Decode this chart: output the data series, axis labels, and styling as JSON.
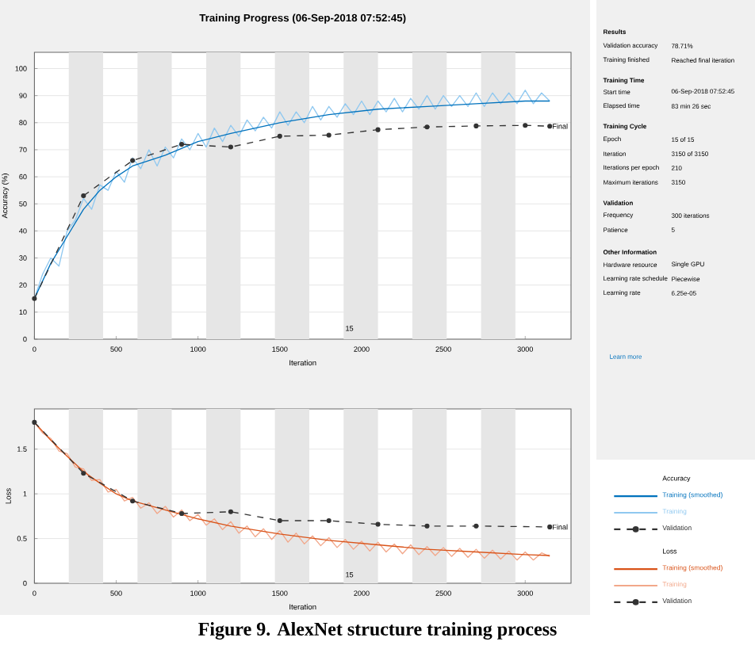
{
  "chart_data": [
    {
      "type": "line",
      "title": "Training Progress (06-Sep-2018 07:52:45)",
      "xlabel": "Iteration",
      "ylabel": "Accuracy (%)",
      "legend_title": "Accuracy",
      "legend": "right",
      "grid": "y",
      "xlim": [
        0,
        3280
      ],
      "xticks": [
        0,
        500,
        1000,
        1500,
        2000,
        2500,
        3000
      ],
      "ylim": [
        0,
        106
      ],
      "yticks": [
        0,
        10,
        20,
        30,
        40,
        50,
        60,
        70,
        80,
        90,
        100
      ],
      "bands": [
        {
          "axis": "x",
          "from": 210,
          "to": 420,
          "color": "#e6e6e6"
        },
        {
          "axis": "x",
          "from": 630,
          "to": 840,
          "color": "#e6e6e6"
        },
        {
          "axis": "x",
          "from": 1050,
          "to": 1260,
          "color": "#e6e6e6"
        },
        {
          "axis": "x",
          "from": 1470,
          "to": 1680,
          "color": "#e6e6e6"
        },
        {
          "axis": "x",
          "from": 1890,
          "to": 2100,
          "color": "#e6e6e6"
        },
        {
          "axis": "x",
          "from": 2310,
          "to": 2520,
          "color": "#e6e6e6"
        },
        {
          "axis": "x",
          "from": 2730,
          "to": 2940,
          "color": "#e6e6e6"
        }
      ],
      "annotations": [
        "15",
        {
          "text": "Final",
          "x": 3150,
          "y": 78.71
        }
      ],
      "series": [
        {
          "name": "Training (smoothed)",
          "color": "#0072bd",
          "x": [
            0,
            100,
            200,
            300,
            400,
            500,
            600,
            800,
            1000,
            1200,
            1500,
            1800,
            2100,
            2400,
            2700,
            3000,
            3150
          ],
          "values": [
            15,
            28,
            38,
            48,
            55,
            60,
            64,
            68,
            73,
            76,
            80,
            83,
            85,
            86,
            87,
            88,
            88
          ]
        },
        {
          "name": "Training",
          "color": "#8fc8f0",
          "x": [
            0,
            50,
            100,
            150,
            200,
            250,
            300,
            350,
            400,
            450,
            500,
            550,
            600,
            650,
            700,
            750,
            800,
            850,
            900,
            950,
            1000,
            1050,
            1100,
            1150,
            1200,
            1250,
            1300,
            1350,
            1400,
            1450,
            1500,
            1550,
            1600,
            1650,
            1700,
            1750,
            1800,
            1850,
            1900,
            1950,
            2000,
            2050,
            2100,
            2150,
            2200,
            2250,
            2300,
            2350,
            2400,
            2450,
            2500,
            2550,
            2600,
            2650,
            2700,
            2750,
            2800,
            2850,
            2900,
            2950,
            3000,
            3050,
            3100,
            3150
          ],
          "values": [
            15,
            24,
            30,
            27,
            40,
            44,
            52,
            48,
            57,
            55,
            62,
            58,
            67,
            63,
            70,
            64,
            71,
            67,
            74,
            70,
            76,
            71,
            78,
            73,
            79,
            75,
            81,
            77,
            82,
            78,
            84,
            79,
            84,
            80,
            86,
            81,
            86,
            82,
            87,
            83,
            88,
            83,
            88,
            84,
            89,
            84,
            89,
            85,
            90,
            85,
            90,
            86,
            90,
            86,
            91,
            86,
            91,
            87,
            91,
            87,
            92,
            87,
            91,
            88
          ]
        },
        {
          "name": "Validation",
          "color": "#333333",
          "line_style": "dashed",
          "marker": "circle",
          "x": [
            0,
            300,
            600,
            900,
            1200,
            1500,
            1800,
            2100,
            2400,
            2700,
            3000,
            3150
          ],
          "values": [
            15,
            53,
            66,
            72,
            71,
            75,
            75.4,
            77.4,
            78.4,
            78.8,
            79,
            78.71
          ]
        }
      ]
    },
    {
      "type": "line",
      "xlabel": "Iteration",
      "ylabel": "Loss",
      "legend_title": "Loss",
      "legend": "right",
      "grid": "y",
      "xlim": [
        0,
        3280
      ],
      "xticks": [
        0,
        500,
        1000,
        1500,
        2000,
        2500,
        3000
      ],
      "ylim": [
        0,
        1.95
      ],
      "yticks": [
        0,
        0.5,
        1,
        1.5
      ],
      "bands": [
        {
          "axis": "x",
          "from": 210,
          "to": 420,
          "color": "#e6e6e6"
        },
        {
          "axis": "x",
          "from": 630,
          "to": 840,
          "color": "#e6e6e6"
        },
        {
          "axis": "x",
          "from": 1050,
          "to": 1260,
          "color": "#e6e6e6"
        },
        {
          "axis": "x",
          "from": 1470,
          "to": 1680,
          "color": "#e6e6e6"
        },
        {
          "axis": "x",
          "from": 1890,
          "to": 2100,
          "color": "#e6e6e6"
        },
        {
          "axis": "x",
          "from": 2310,
          "to": 2520,
          "color": "#e6e6e6"
        },
        {
          "axis": "x",
          "from": 2730,
          "to": 2940,
          "color": "#e6e6e6"
        }
      ],
      "annotations": [
        "15",
        {
          "text": "Final",
          "x": 3150,
          "y": 0.63
        }
      ],
      "series": [
        {
          "name": "Training (smoothed)",
          "color": "#d95319",
          "x": [
            0,
            100,
            200,
            300,
            400,
            500,
            600,
            800,
            1000,
            1200,
            1500,
            1800,
            2100,
            2400,
            2700,
            3000,
            3150
          ],
          "values": [
            1.8,
            1.6,
            1.42,
            1.25,
            1.12,
            1.0,
            0.92,
            0.82,
            0.72,
            0.64,
            0.55,
            0.48,
            0.43,
            0.38,
            0.35,
            0.32,
            0.31
          ]
        },
        {
          "name": "Training",
          "color": "#f2a78a",
          "x": [
            0,
            50,
            100,
            150,
            200,
            250,
            300,
            350,
            400,
            450,
            500,
            550,
            600,
            650,
            700,
            750,
            800,
            850,
            900,
            950,
            1000,
            1050,
            1100,
            1150,
            1200,
            1250,
            1300,
            1350,
            1400,
            1450,
            1500,
            1550,
            1600,
            1650,
            1700,
            1750,
            1800,
            1850,
            1900,
            1950,
            2000,
            2050,
            2100,
            2150,
            2200,
            2250,
            2300,
            2350,
            2400,
            2450,
            2500,
            2550,
            2600,
            2650,
            2700,
            2750,
            2800,
            2850,
            2900,
            2950,
            3000,
            3050,
            3100,
            3150
          ],
          "values": [
            1.8,
            1.68,
            1.62,
            1.48,
            1.45,
            1.3,
            1.28,
            1.15,
            1.16,
            1.02,
            1.05,
            0.92,
            0.96,
            0.84,
            0.9,
            0.78,
            0.86,
            0.74,
            0.82,
            0.7,
            0.77,
            0.65,
            0.72,
            0.6,
            0.69,
            0.56,
            0.64,
            0.52,
            0.61,
            0.49,
            0.59,
            0.46,
            0.56,
            0.44,
            0.53,
            0.42,
            0.51,
            0.4,
            0.49,
            0.38,
            0.47,
            0.36,
            0.46,
            0.35,
            0.44,
            0.33,
            0.43,
            0.32,
            0.41,
            0.31,
            0.4,
            0.3,
            0.39,
            0.29,
            0.38,
            0.28,
            0.37,
            0.27,
            0.36,
            0.26,
            0.35,
            0.26,
            0.34,
            0.3
          ]
        },
        {
          "name": "Validation",
          "color": "#333333",
          "line_style": "dashed",
          "marker": "circle",
          "x": [
            0,
            300,
            600,
            900,
            1200,
            1500,
            1800,
            2100,
            2400,
            2700,
            3150
          ],
          "values": [
            1.8,
            1.23,
            0.92,
            0.78,
            0.8,
            0.7,
            0.7,
            0.66,
            0.64,
            0.64,
            0.63
          ]
        }
      ]
    },
    {
      "type": "other",
      "annotations": [
        "Results",
        "Validation accuracy",
        "78.71%",
        "Training finished",
        "Reached final iteration",
        "Training Time",
        "Start time",
        "06-Sep-2018 07:52:45",
        "Elapsed time",
        "83 min 26 sec",
        "Training Cycle",
        "Epoch",
        "15 of 15",
        "Iteration",
        "3150 of 3150",
        "Iterations per epoch",
        "210",
        "Maximum iterations",
        "3150",
        "Validation",
        "Frequency",
        "300 iterations",
        "Patience",
        "5",
        "Other Information",
        "Hardware resource",
        "Single GPU",
        "Learning rate schedule",
        "Piecewise",
        "Learning rate",
        "6.25e-05",
        "Learn more",
        "Figure 9. AlexNet structure training process"
      ]
    }
  ]
}
